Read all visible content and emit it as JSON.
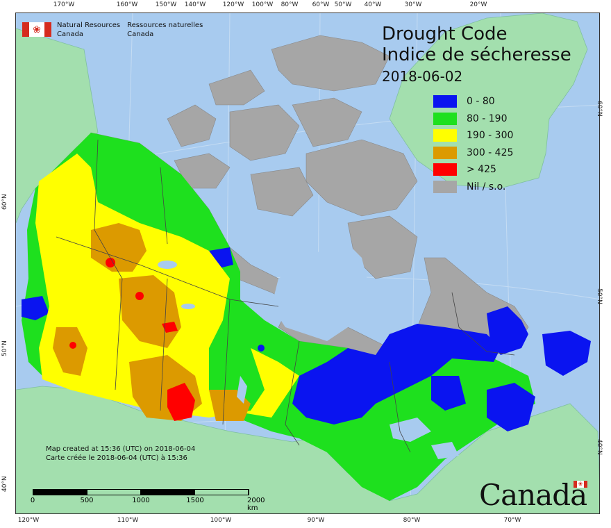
{
  "title": {
    "line1": "Drought Code",
    "line2": "Indice de sécheresse",
    "date": "2018-06-02"
  },
  "legend": [
    {
      "label": "0 - 80",
      "color": "#0a14f0"
    },
    {
      "label": "80 - 190",
      "color": "#1ee01e"
    },
    {
      "label": "190 - 300",
      "color": "#ffff00"
    },
    {
      "label": "300 - 425",
      "color": "#dc9a00"
    },
    {
      "label": "> 425",
      "color": "#ff0000"
    },
    {
      "label": "Nil / s.o.",
      "color": "#a6a6a6"
    }
  ],
  "colors": {
    "water": "#a8cbef",
    "foreign_land": "#a3dfae"
  },
  "agency": {
    "en_line1": "Natural Resources",
    "en_line2": "Canada",
    "fr_line1": "Ressources naturelles",
    "fr_line2": "Canada"
  },
  "notes": {
    "line1": "Map created at 15:36 (UTC) on 2018-06-04",
    "line2": "Carte créée le 2018-06-04 (UTC) à 15:36"
  },
  "scale": {
    "labels": [
      "0",
      "500",
      "1000",
      "1500",
      "2000 km"
    ]
  },
  "ticks": {
    "top": [
      "170°W",
      "160°W",
      "150°W",
      "140°W",
      "120°W",
      "100°W",
      "80°W",
      "60°W",
      "50°W",
      "40°W",
      "30°W",
      "20°W"
    ],
    "bottom": [
      "120°W",
      "110°W",
      "100°W",
      "90°W",
      "80°W",
      "70°W"
    ],
    "left": [
      "60°N",
      "50°N",
      "40°N"
    ],
    "right": [
      "60°N",
      "50°N",
      "40°N"
    ]
  },
  "wordmark": "Canada"
}
